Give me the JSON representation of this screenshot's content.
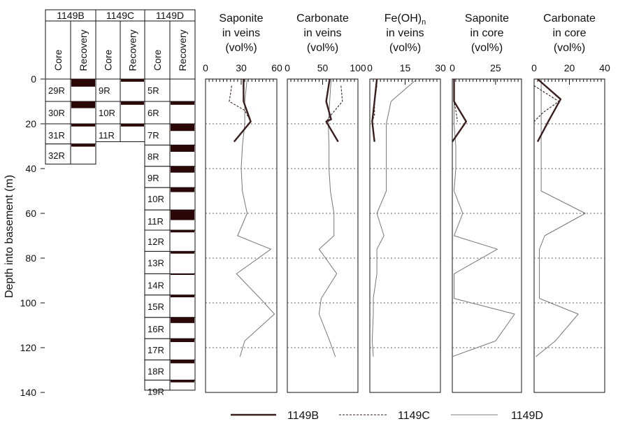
{
  "figure": {
    "ylabel": "Depth into basement (m)",
    "yticks": [
      "0",
      "20",
      "40",
      "60",
      "80",
      "100",
      "120",
      "140"
    ],
    "legend": [
      {
        "key": "B",
        "label": "1149B"
      },
      {
        "key": "C",
        "label": "1149C"
      },
      {
        "key": "D",
        "label": "1149D"
      }
    ],
    "colors": {
      "B": "#3a1e1e",
      "C": "#3a1e1e",
      "D": "#777777",
      "recovery": "#2a0808",
      "gridline": "#666666"
    }
  },
  "cores": {
    "col_core": "Core",
    "col_recovery": "Recovery",
    "holes": [
      {
        "name": "1149B",
        "cores": [
          {
            "label": "29R",
            "top": 0,
            "bottom": 10,
            "rec": 3.4
          },
          {
            "label": "30R",
            "top": 10,
            "bottom": 20,
            "rec": 3.0
          },
          {
            "label": "31R",
            "top": 20,
            "bottom": 29,
            "rec": 1.2
          },
          {
            "label": "32R",
            "top": 29,
            "bottom": 38,
            "rec": 1.2
          }
        ]
      },
      {
        "name": "1149C",
        "cores": [
          {
            "label": "9R",
            "top": 0,
            "bottom": 10,
            "rec": 1.2
          },
          {
            "label": "10R",
            "top": 10,
            "bottom": 20,
            "rec": 1.5
          },
          {
            "label": "11R",
            "top": 20,
            "bottom": 28,
            "rec": 1.2
          }
        ]
      },
      {
        "name": "1149D",
        "cores": [
          {
            "label": "5R",
            "top": 0,
            "bottom": 10,
            "rec": 0
          },
          {
            "label": "6R",
            "top": 10,
            "bottom": 20,
            "rec": 1.5
          },
          {
            "label": "7R",
            "top": 20,
            "bottom": 29.5,
            "rec": 3.2
          },
          {
            "label": "8R",
            "top": 29.5,
            "bottom": 39,
            "rec": 3.0
          },
          {
            "label": "9R",
            "top": 39,
            "bottom": 48.5,
            "rec": 2.8
          },
          {
            "label": "10R",
            "top": 48.5,
            "bottom": 58.5,
            "rec": 2.0
          },
          {
            "label": "11R",
            "top": 58.5,
            "bottom": 67.5,
            "rec": 4.5
          },
          {
            "label": "12R",
            "top": 67.5,
            "bottom": 77,
            "rec": 1.0
          },
          {
            "label": "13R",
            "top": 77,
            "bottom": 87,
            "rec": 1.0
          },
          {
            "label": "14R",
            "top": 87,
            "bottom": 96.5,
            "rec": 0.5
          },
          {
            "label": "15R",
            "top": 96.5,
            "bottom": 106.5,
            "rec": 1.0
          },
          {
            "label": "16R",
            "top": 106.5,
            "bottom": 116,
            "rec": 2.5
          },
          {
            "label": "17R",
            "top": 116,
            "bottom": 125.5,
            "rec": 1.5
          },
          {
            "label": "18R",
            "top": 125.5,
            "bottom": 134.5,
            "rec": 1.5
          },
          {
            "label": "19R",
            "top": 134.5,
            "bottom": 139,
            "rec": 1.0
          }
        ]
      }
    ]
  },
  "chart_data": [
    {
      "type": "line",
      "title_lines": [
        "Saponite",
        "in veins",
        "(vol%)"
      ],
      "xlim": [
        0,
        60
      ],
      "xticks": [
        {
          "v": 0,
          "t": "0"
        },
        {
          "v": 30,
          "t": "30"
        },
        {
          "v": 60,
          "t": "60"
        }
      ],
      "ylim": [
        0,
        140
      ],
      "series": [
        {
          "key": "B",
          "points": [
            [
              32,
              0
            ],
            [
              32,
              10
            ],
            [
              38,
              19
            ],
            [
              24,
              28
            ]
          ]
        },
        {
          "key": "C",
          "points": [
            [
              22,
              3
            ],
            [
              20,
              10
            ],
            [
              33,
              14
            ],
            [
              38,
              19
            ]
          ]
        },
        {
          "key": "D",
          "points": [
            [
              35,
              0
            ],
            [
              33,
              10
            ],
            [
              33,
              20
            ],
            [
              31,
              30
            ],
            [
              30,
              40
            ],
            [
              31,
              50
            ],
            [
              35,
              60
            ],
            [
              27,
              70
            ],
            [
              55,
              76
            ],
            [
              26,
              87
            ],
            [
              46,
              98
            ],
            [
              58,
              105
            ],
            [
              33,
              117
            ],
            [
              29,
              124
            ]
          ]
        }
      ]
    },
    {
      "type": "line",
      "title_lines": [
        "Carbonate",
        "in veins",
        "(vol%)"
      ],
      "xlim": [
        0,
        100
      ],
      "xticks": [
        {
          "v": 0,
          "t": "0"
        },
        {
          "v": 50,
          "t": "50"
        },
        {
          "v": 100,
          "t": "100"
        }
      ],
      "ylim": [
        0,
        140
      ],
      "series": [
        {
          "key": "B",
          "points": [
            [
              60,
              0
            ],
            [
              55,
              10
            ],
            [
              62,
              18
            ],
            [
              55,
              19
            ],
            [
              72,
              28
            ]
          ]
        },
        {
          "key": "C",
          "points": [
            [
              76,
              3
            ],
            [
              78,
              10
            ],
            [
              62,
              16
            ],
            [
              55,
              19
            ]
          ]
        },
        {
          "key": "D",
          "points": [
            [
              62,
              0
            ],
            [
              60,
              10
            ],
            [
              58,
              20
            ],
            [
              59,
              30
            ],
            [
              59,
              40
            ],
            [
              61,
              50
            ],
            [
              66,
              60
            ],
            [
              66,
              70
            ],
            [
              45,
              76
            ],
            [
              70,
              87
            ],
            [
              48,
              98
            ],
            [
              45,
              105
            ],
            [
              60,
              117
            ],
            [
              68,
              124
            ]
          ]
        }
      ]
    },
    {
      "type": "line",
      "title_lines": [
        "Fe(OH)n",
        "in veins",
        "(vol%)"
      ],
      "title_sub_n": true,
      "xlim": [
        0,
        30
      ],
      "xticks": [
        {
          "v": 0,
          "t": "0"
        },
        {
          "v": 15,
          "t": "15"
        },
        {
          "v": 30,
          "t": "30"
        }
      ],
      "ylim": [
        0,
        140
      ],
      "series": [
        {
          "key": "B",
          "points": [
            [
              3,
              0
            ],
            [
              2,
              10
            ],
            [
              1,
              19
            ],
            [
              2,
              28
            ]
          ]
        },
        {
          "key": "C",
          "points": [
            [
              3,
              3
            ],
            [
              2,
              10
            ],
            [
              2,
              16
            ],
            [
              1,
              19
            ]
          ]
        },
        {
          "key": "D",
          "points": [
            [
              20,
              0
            ],
            [
              9,
              10
            ],
            [
              7,
              20
            ],
            [
              7,
              30
            ],
            [
              7,
              40
            ],
            [
              7,
              50
            ],
            [
              3,
              60
            ],
            [
              6,
              70
            ],
            [
              3,
              76
            ],
            [
              3,
              87
            ],
            [
              1.5,
              98
            ],
            [
              1.5,
              105
            ],
            [
              1,
              117
            ],
            [
              1.5,
              124
            ]
          ]
        }
      ]
    },
    {
      "type": "line",
      "title_lines": [
        "Saponite",
        "in core",
        "(vol%)"
      ],
      "xlim": [
        0,
        40
      ],
      "xticks": [
        {
          "v": 0,
          "t": "0"
        },
        {
          "v": 25,
          "t": "25"
        }
      ],
      "ylim": [
        0,
        140
      ],
      "series": [
        {
          "key": "B",
          "points": [
            [
              1,
              0
            ],
            [
              1,
              10
            ],
            [
              8,
              19
            ],
            [
              0,
              28
            ]
          ]
        },
        {
          "key": "C",
          "points": [
            [
              1,
              3
            ],
            [
              1,
              10
            ],
            [
              2,
              14
            ],
            [
              3,
              19
            ]
          ]
        },
        {
          "key": "D",
          "points": [
            [
              1,
              0
            ],
            [
              1,
              10
            ],
            [
              1,
              20
            ],
            [
              2,
              30
            ],
            [
              2,
              40
            ],
            [
              1,
              50
            ],
            [
              6,
              60
            ],
            [
              1,
              70
            ],
            [
              26,
              76
            ],
            [
              1,
              87
            ],
            [
              1,
              98
            ],
            [
              36,
              105
            ],
            [
              25,
              117
            ],
            [
              0,
              124
            ]
          ]
        }
      ]
    },
    {
      "type": "line",
      "title_lines": [
        "Carbonate",
        "in core",
        "(vol%)"
      ],
      "xlim": [
        0,
        40
      ],
      "xticks": [
        {
          "v": 0,
          "t": "0"
        },
        {
          "v": 20,
          "t": "20"
        },
        {
          "v": 40,
          "t": "40"
        }
      ],
      "ylim": [
        0,
        140
      ],
      "series": [
        {
          "key": "B",
          "points": [
            [
              2,
              0
            ],
            [
              15,
              9
            ],
            [
              8,
              19
            ],
            [
              2,
              28
            ]
          ]
        },
        {
          "key": "C",
          "points": [
            [
              0,
              3
            ],
            [
              14,
              10
            ],
            [
              5,
              15
            ],
            [
              0,
              19
            ]
          ]
        },
        {
          "key": "D",
          "points": [
            [
              4,
              0
            ],
            [
              4,
              10
            ],
            [
              4,
              20
            ],
            [
              4,
              30
            ],
            [
              4,
              40
            ],
            [
              4,
              50
            ],
            [
              29,
              60
            ],
            [
              6,
              70
            ],
            [
              3,
              76
            ],
            [
              3,
              87
            ],
            [
              3,
              98
            ],
            [
              25,
              105
            ],
            [
              12,
              117
            ],
            [
              1,
              124
            ]
          ]
        }
      ]
    }
  ]
}
